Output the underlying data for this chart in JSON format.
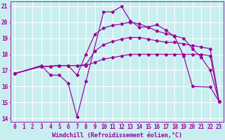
{
  "background_color": "#c8eef0",
  "grid_color": "#ffffff",
  "line_color": "#990099",
  "xlabel": "Windchill (Refroidissement éolien,°C)",
  "xlabel_fontsize": 6.0,
  "tick_fontsize": 5.5,
  "xlim": [
    -0.5,
    23.5
  ],
  "ylim": [
    13.8,
    21.3
  ],
  "yticks": [
    14,
    15,
    16,
    17,
    18,
    19,
    20,
    21
  ],
  "xticks": [
    0,
    1,
    2,
    3,
    4,
    5,
    6,
    7,
    8,
    9,
    10,
    11,
    12,
    13,
    14,
    15,
    16,
    17,
    18,
    19,
    20,
    21,
    22,
    23
  ],
  "line1_x": [
    0,
    3,
    4,
    5,
    6,
    7,
    8,
    10,
    11,
    12,
    13,
    14,
    15,
    16,
    17,
    18,
    19,
    20,
    22,
    23
  ],
  "line1_y": [
    16.8,
    17.3,
    16.7,
    16.7,
    16.2,
    14.1,
    16.3,
    20.65,
    20.65,
    21.0,
    20.1,
    19.7,
    19.7,
    19.85,
    19.5,
    19.1,
    17.9,
    16.0,
    15.95,
    15.05
  ],
  "line2_x": [
    0,
    3,
    4,
    5,
    6,
    7,
    8,
    9,
    10,
    11,
    12,
    13,
    14,
    15,
    16,
    17,
    18,
    19,
    20,
    21,
    22,
    23
  ],
  "line2_y": [
    16.8,
    17.25,
    17.25,
    17.3,
    17.3,
    16.7,
    18.0,
    19.25,
    19.65,
    19.8,
    19.9,
    20.0,
    19.9,
    19.7,
    19.45,
    19.3,
    19.15,
    19.0,
    18.35,
    17.8,
    17.0,
    15.05
  ],
  "line3_x": [
    0,
    3,
    4,
    5,
    6,
    7,
    8,
    9,
    10,
    11,
    12,
    13,
    14,
    15,
    16,
    17,
    18,
    19,
    20,
    21,
    22,
    23
  ],
  "line3_y": [
    16.8,
    17.25,
    17.25,
    17.3,
    17.3,
    17.3,
    17.35,
    18.2,
    18.6,
    18.8,
    18.95,
    19.05,
    19.05,
    18.95,
    18.85,
    18.75,
    18.75,
    18.65,
    18.55,
    18.45,
    18.35,
    15.05
  ],
  "line4_x": [
    0,
    3,
    4,
    5,
    6,
    7,
    8,
    9,
    10,
    11,
    12,
    13,
    14,
    15,
    16,
    17,
    18,
    19,
    20,
    21,
    22,
    23
  ],
  "line4_y": [
    16.8,
    17.25,
    17.25,
    17.3,
    17.3,
    17.3,
    17.3,
    17.5,
    17.7,
    17.8,
    17.9,
    18.0,
    18.0,
    18.0,
    18.0,
    18.0,
    18.0,
    18.0,
    18.0,
    18.0,
    17.9,
    15.05
  ]
}
